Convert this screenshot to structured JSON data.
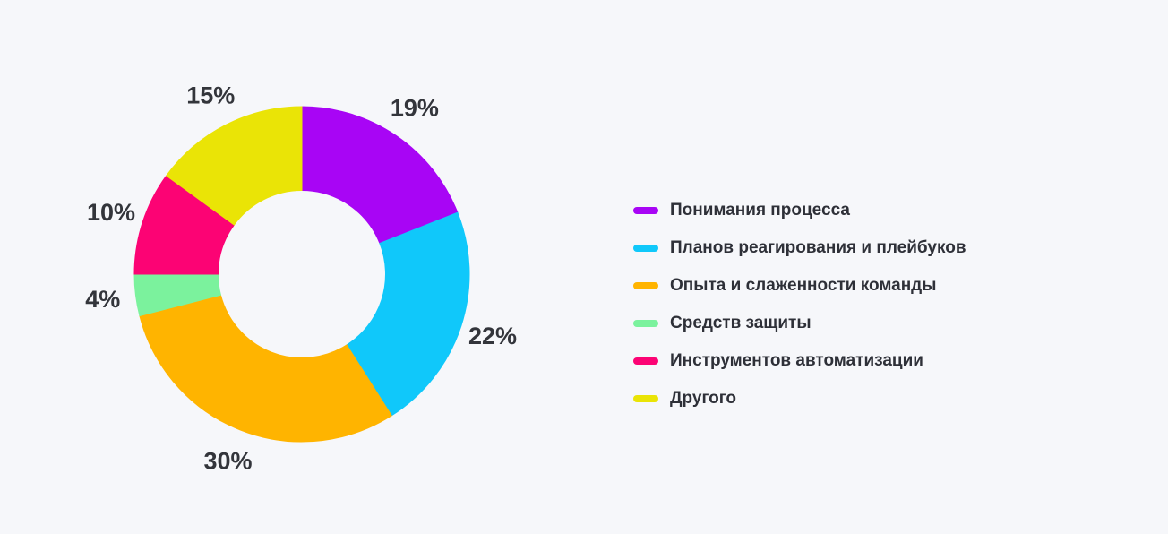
{
  "page": {
    "background": "#F6F7FA",
    "text_color": "#33353B"
  },
  "chart_data": {
    "type": "pie",
    "donut": true,
    "hole_ratio": 0.5,
    "title": "",
    "unit": "%",
    "direction": "clockwise",
    "start_angle_deg": 0,
    "legend_position": "right",
    "categories": [
      "Понимания процесса",
      "Планов реагирования и плейбуков",
      "Опыта и слаженности команды",
      "Средств защиты",
      "Инструментов автоматизации",
      "Другого"
    ],
    "values": [
      19,
      22,
      30,
      4,
      10,
      15
    ],
    "labels": [
      "19%",
      "22%",
      "30%",
      "4%",
      "10%",
      "15%"
    ],
    "colors": [
      "#A805F5",
      "#10C8FA",
      "#FFB400",
      "#7BF29D",
      "#FC0374",
      "#EAE406"
    ]
  }
}
